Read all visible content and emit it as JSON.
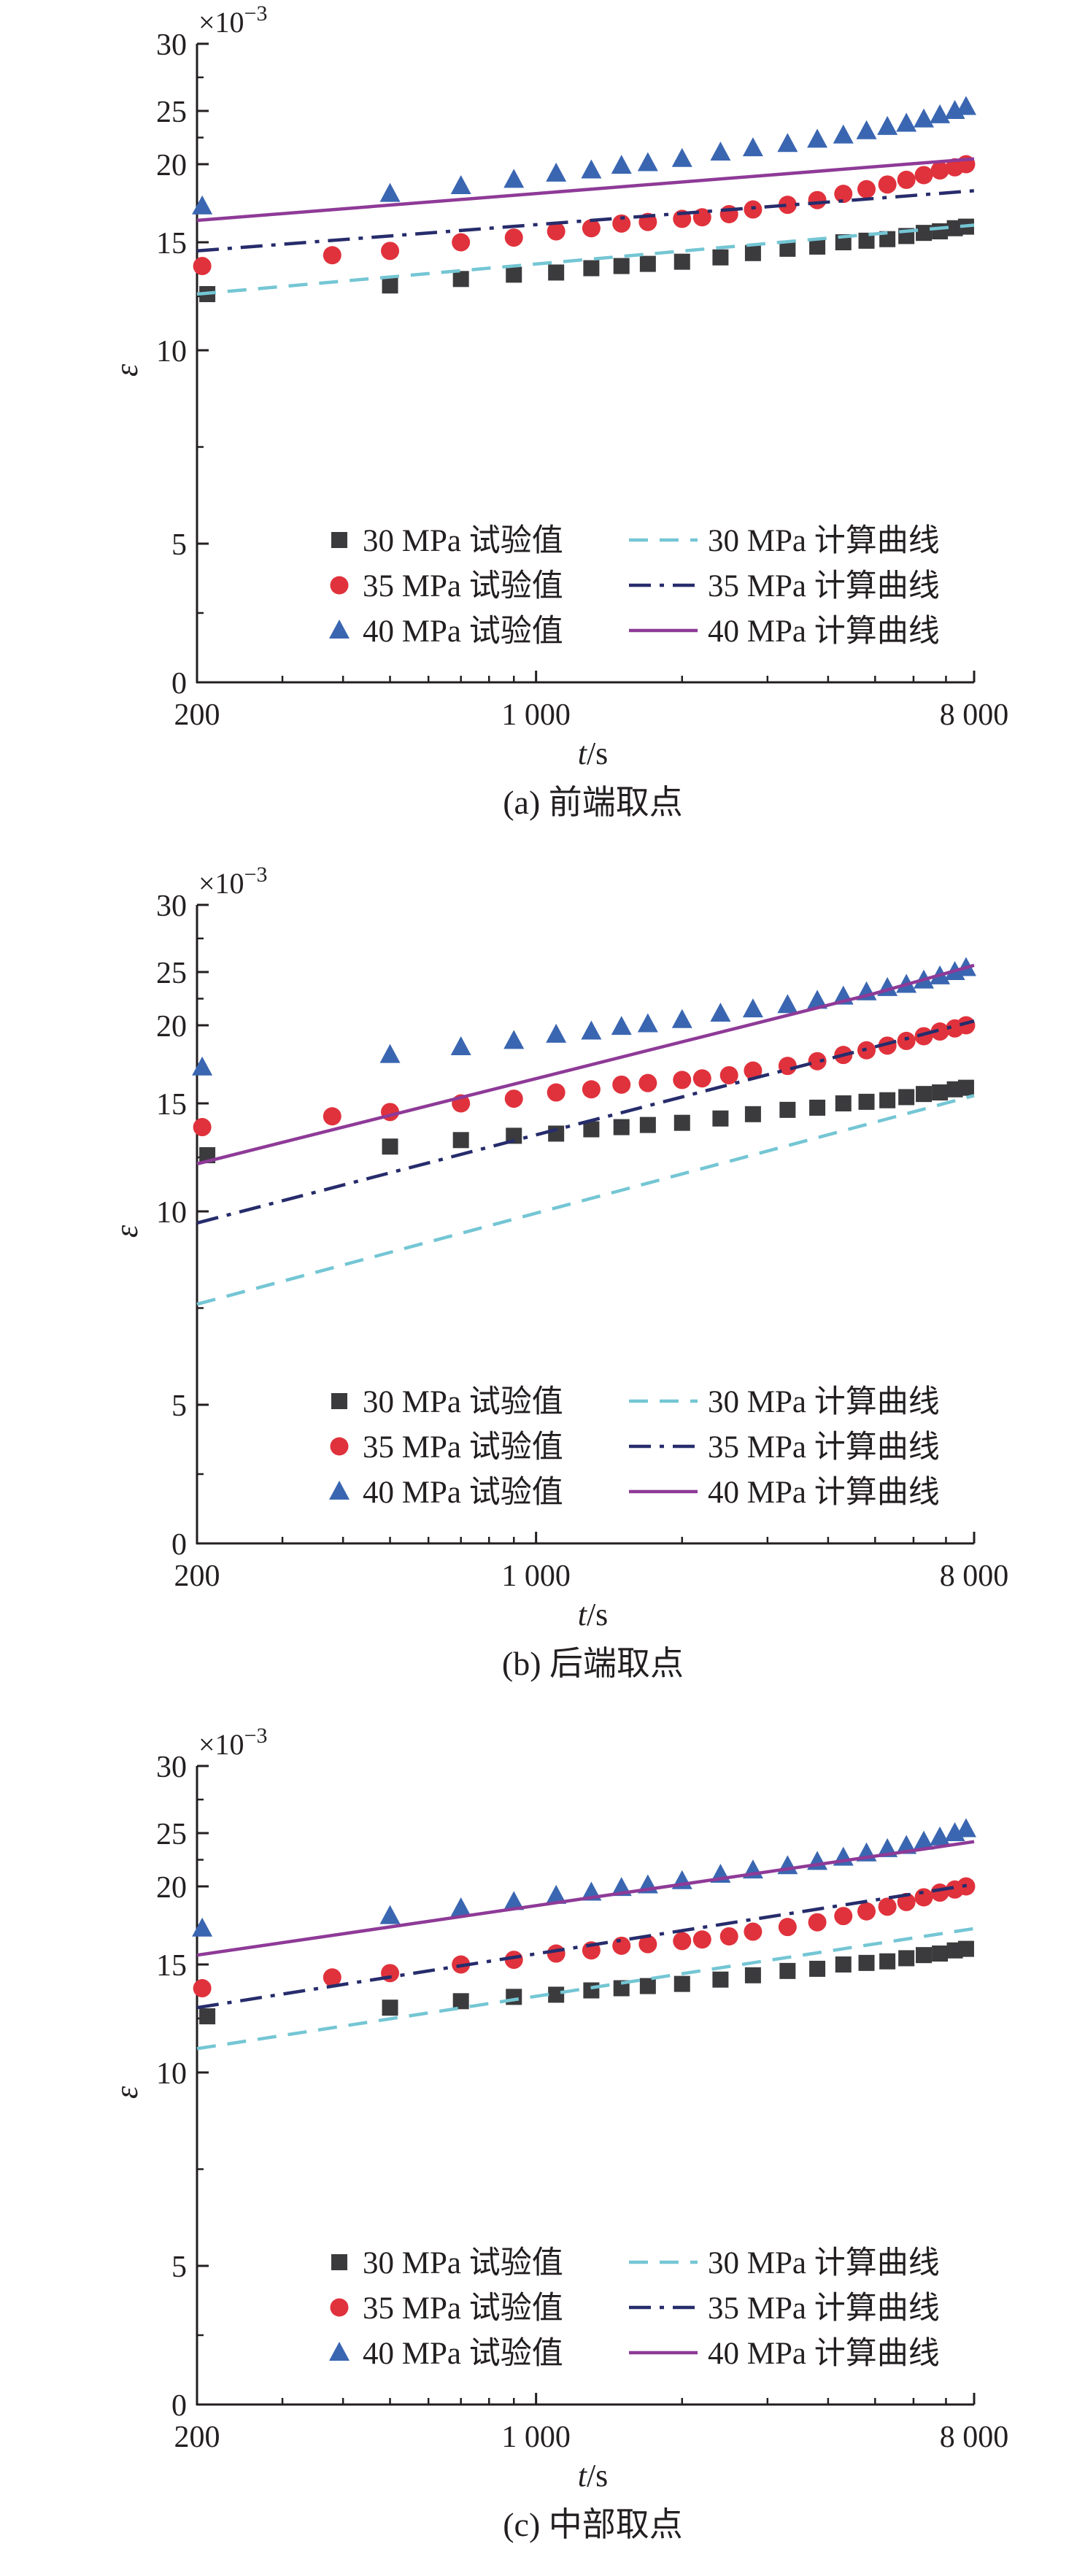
{
  "chart_data": [
    {
      "type": "scatter",
      "caption": "(a) 前端取点",
      "xlabel": "t/s",
      "ylabel": "ε",
      "y_multiplier": "×10−3",
      "x_scale": "log",
      "xlim": [
        200,
        8000
      ],
      "x_ticks": [
        200,
        1000,
        8000
      ],
      "x_tick_labels": [
        "200",
        "1 000",
        "8 000"
      ],
      "ylim": [
        0,
        30
      ],
      "y_ticks": [
        0,
        5,
        10,
        15,
        20,
        25,
        30
      ],
      "y_tick_labels": [
        "0",
        "5",
        "10",
        "15",
        "20",
        "25",
        "30"
      ],
      "series": [
        {
          "name": "30 MPa 试验值",
          "kind": "points",
          "marker": "square",
          "color": "#3b3b3e",
          "x": [
            210,
            500,
            700,
            900,
            1100,
            1300,
            1500,
            1700,
            2000,
            2400,
            2800,
            3300,
            3800,
            4300,
            4800,
            5300,
            5800,
            6300,
            6800,
            7300,
            7700
          ],
          "y": [
            12.6,
            13.0,
            13.3,
            13.5,
            13.6,
            13.8,
            13.9,
            14.0,
            14.1,
            14.3,
            14.5,
            14.7,
            14.8,
            15.0,
            15.1,
            15.2,
            15.4,
            15.6,
            15.7,
            15.9,
            16.0
          ]
        },
        {
          "name": "35 MPa 试验值",
          "kind": "points",
          "marker": "circle",
          "color": "#e0323c",
          "x": [
            205,
            380,
            500,
            700,
            900,
            1100,
            1300,
            1500,
            1700,
            2000,
            2200,
            2500,
            2800,
            3300,
            3800,
            4300,
            4800,
            5300,
            5800,
            6300,
            6800,
            7300,
            7700
          ],
          "y": [
            13.9,
            14.4,
            14.6,
            15.0,
            15.3,
            15.7,
            15.9,
            16.2,
            16.3,
            16.5,
            16.6,
            16.8,
            17.1,
            17.4,
            17.7,
            18.1,
            18.4,
            18.7,
            19.0,
            19.3,
            19.6,
            19.8,
            20.0
          ]
        },
        {
          "name": "40 MPa 试验值",
          "kind": "points",
          "marker": "triangle",
          "color": "#3a66b1",
          "x": [
            205,
            500,
            700,
            900,
            1100,
            1300,
            1500,
            1700,
            2000,
            2400,
            2800,
            3300,
            3800,
            4300,
            4800,
            5300,
            5800,
            6300,
            6800,
            7300,
            7700
          ],
          "y": [
            17.3,
            18.1,
            18.6,
            19.0,
            19.4,
            19.6,
            19.9,
            20.1,
            20.5,
            21.1,
            21.5,
            21.9,
            22.3,
            22.7,
            23.1,
            23.5,
            23.8,
            24.2,
            24.6,
            25.0,
            25.3
          ]
        },
        {
          "name": "30 MPa 计算曲线",
          "kind": "line",
          "dash": "dashed",
          "color": "#74c6d4",
          "x": [
            200,
            8000
          ],
          "y": [
            12.6,
            16.1
          ]
        },
        {
          "name": "35 MPa 计算曲线",
          "kind": "line",
          "dash": "dashdot",
          "color": "#262c6b",
          "x": [
            200,
            8000
          ],
          "y": [
            14.6,
            18.3
          ]
        },
        {
          "name": "40 MPa 计算曲线",
          "kind": "line",
          "dash": "solid",
          "color": "#8e3a97",
          "x": [
            200,
            8000
          ],
          "y": [
            16.4,
            20.5
          ]
        }
      ]
    },
    {
      "type": "scatter",
      "caption": "(b) 后端取点",
      "xlabel": "t/s",
      "ylabel": "ε",
      "y_multiplier": "×10−3",
      "x_scale": "log",
      "xlim": [
        200,
        8000
      ],
      "x_ticks": [
        200,
        1000,
        8000
      ],
      "x_tick_labels": [
        "200",
        "1 000",
        "8 000"
      ],
      "ylim": [
        0,
        30
      ],
      "y_ticks": [
        0,
        5,
        10,
        15,
        20,
        25,
        30
      ],
      "y_tick_labels": [
        "0",
        "5",
        "10",
        "15",
        "20",
        "25",
        "30"
      ],
      "series": [
        {
          "name": "30 MPa 试验值",
          "kind": "points",
          "marker": "square",
          "color": "#3b3b3e",
          "x": [
            210,
            500,
            700,
            900,
            1100,
            1300,
            1500,
            1700,
            2000,
            2400,
            2800,
            3300,
            3800,
            4300,
            4800,
            5300,
            5800,
            6300,
            6800,
            7300,
            7700
          ],
          "y": [
            12.6,
            13.0,
            13.3,
            13.5,
            13.6,
            13.8,
            13.9,
            14.0,
            14.1,
            14.3,
            14.5,
            14.7,
            14.8,
            15.0,
            15.1,
            15.2,
            15.4,
            15.6,
            15.7,
            15.9,
            16.0
          ]
        },
        {
          "name": "35 MPa 试验值",
          "kind": "points",
          "marker": "circle",
          "color": "#e0323c",
          "x": [
            205,
            380,
            500,
            700,
            900,
            1100,
            1300,
            1500,
            1700,
            2000,
            2200,
            2500,
            2800,
            3300,
            3800,
            4300,
            4800,
            5300,
            5800,
            6300,
            6800,
            7300,
            7700
          ],
          "y": [
            13.9,
            14.4,
            14.6,
            15.0,
            15.3,
            15.7,
            15.9,
            16.2,
            16.3,
            16.5,
            16.6,
            16.8,
            17.1,
            17.4,
            17.7,
            18.1,
            18.4,
            18.7,
            19.0,
            19.3,
            19.6,
            19.8,
            20.0
          ]
        },
        {
          "name": "40 MPa 试验值",
          "kind": "points",
          "marker": "triangle",
          "color": "#3a66b1",
          "x": [
            205,
            500,
            700,
            900,
            1100,
            1300,
            1500,
            1700,
            2000,
            2400,
            2800,
            3300,
            3800,
            4300,
            4800,
            5300,
            5800,
            6300,
            6800,
            7300,
            7700
          ],
          "y": [
            17.3,
            18.1,
            18.6,
            19.0,
            19.4,
            19.6,
            19.9,
            20.1,
            20.5,
            21.1,
            21.5,
            21.9,
            22.3,
            22.7,
            23.1,
            23.5,
            23.8,
            24.2,
            24.6,
            25.0,
            25.3
          ]
        },
        {
          "name": "30 MPa 计算曲线",
          "kind": "line",
          "dash": "dashed",
          "color": "#74c6d4",
          "x": [
            200,
            8000
          ],
          "y": [
            7.6,
            15.5
          ]
        },
        {
          "name": "35 MPa 计算曲线",
          "kind": "line",
          "dash": "dashdot",
          "color": "#262c6b",
          "x": [
            200,
            8000
          ],
          "y": [
            9.7,
            20.4
          ]
        },
        {
          "name": "40 MPa 计算曲线",
          "kind": "line",
          "dash": "solid",
          "color": "#8e3a97",
          "x": [
            200,
            5000,
            8000
          ],
          "y": [
            12.2,
            23.0,
            25.5
          ]
        }
      ]
    },
    {
      "type": "scatter",
      "caption": "(c) 中部取点",
      "xlabel": "t/s",
      "ylabel": "ε",
      "y_multiplier": "×10−3",
      "x_scale": "log",
      "xlim": [
        200,
        8000
      ],
      "x_ticks": [
        200,
        1000,
        8000
      ],
      "x_tick_labels": [
        "200",
        "1 000",
        "8 000"
      ],
      "ylim": [
        0,
        30
      ],
      "y_ticks": [
        0,
        5,
        10,
        15,
        20,
        25,
        30
      ],
      "y_tick_labels": [
        "0",
        "5",
        "10",
        "15",
        "20",
        "25",
        "30"
      ],
      "series": [
        {
          "name": "30 MPa 试验值",
          "kind": "points",
          "marker": "square",
          "color": "#3b3b3e",
          "x": [
            210,
            500,
            700,
            900,
            1100,
            1300,
            1500,
            1700,
            2000,
            2400,
            2800,
            3300,
            3800,
            4300,
            4800,
            5300,
            5800,
            6300,
            6800,
            7300,
            7700
          ],
          "y": [
            12.6,
            13.0,
            13.3,
            13.5,
            13.6,
            13.8,
            13.9,
            14.0,
            14.1,
            14.3,
            14.5,
            14.7,
            14.8,
            15.0,
            15.1,
            15.2,
            15.4,
            15.6,
            15.7,
            15.9,
            16.0
          ]
        },
        {
          "name": "35 MPa 试验值",
          "kind": "points",
          "marker": "circle",
          "color": "#e0323c",
          "x": [
            205,
            380,
            500,
            700,
            900,
            1100,
            1300,
            1500,
            1700,
            2000,
            2200,
            2500,
            2800,
            3300,
            3800,
            4300,
            4800,
            5300,
            5800,
            6300,
            6800,
            7300,
            7700
          ],
          "y": [
            13.9,
            14.4,
            14.6,
            15.0,
            15.3,
            15.7,
            15.9,
            16.2,
            16.3,
            16.5,
            16.6,
            16.8,
            17.1,
            17.4,
            17.7,
            18.1,
            18.4,
            18.7,
            19.0,
            19.3,
            19.6,
            19.8,
            20.0
          ]
        },
        {
          "name": "40 MPa 试验值",
          "kind": "points",
          "marker": "triangle",
          "color": "#3a66b1",
          "x": [
            205,
            500,
            700,
            900,
            1100,
            1300,
            1500,
            1700,
            2000,
            2400,
            2800,
            3300,
            3800,
            4300,
            4800,
            5300,
            5800,
            6300,
            6800,
            7300,
            7700
          ],
          "y": [
            17.3,
            18.1,
            18.6,
            19.0,
            19.4,
            19.6,
            19.9,
            20.1,
            20.5,
            21.1,
            21.5,
            21.9,
            22.3,
            22.7,
            23.1,
            23.5,
            23.8,
            24.2,
            24.6,
            25.0,
            25.3
          ]
        },
        {
          "name": "30 MPa 计算曲线",
          "kind": "line",
          "dash": "dashed",
          "color": "#74c6d4",
          "x": [
            200,
            8000
          ],
          "y": [
            11.1,
            17.3
          ]
        },
        {
          "name": "35 MPa 计算曲线",
          "kind": "line",
          "dash": "dashdot",
          "color": "#262c6b",
          "x": [
            200,
            8000
          ],
          "y": [
            13.0,
            20.2
          ]
        },
        {
          "name": "40 MPa 计算曲线",
          "kind": "line",
          "dash": "solid",
          "color": "#8e3a97",
          "x": [
            200,
            8000
          ],
          "y": [
            15.6,
            24.2
          ]
        }
      ]
    }
  ]
}
